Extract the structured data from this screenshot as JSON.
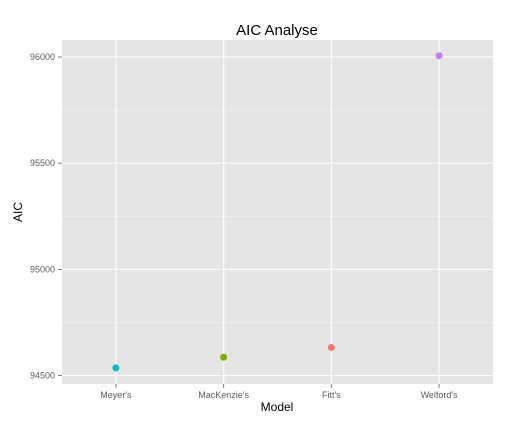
{
  "chart_data": {
    "type": "scatter",
    "title": "AIC Analyse",
    "xlabel": "Model",
    "ylabel": "AIC",
    "categories": [
      "Meyer's",
      "MacKenzie's",
      "Fitt's",
      "Welford's"
    ],
    "values": [
      94536,
      94586,
      94632,
      96006
    ],
    "point_colors": [
      "#00BFC4",
      "#7CAE00",
      "#F8766D",
      "#C77CFF"
    ],
    "yticks": [
      94500,
      95000,
      95500,
      96000
    ],
    "ylim": [
      94460,
      96080
    ],
    "grid": true,
    "legend": "none",
    "panel_color": "#E5E5E5",
    "gridline_color": "#FFFFFF"
  }
}
